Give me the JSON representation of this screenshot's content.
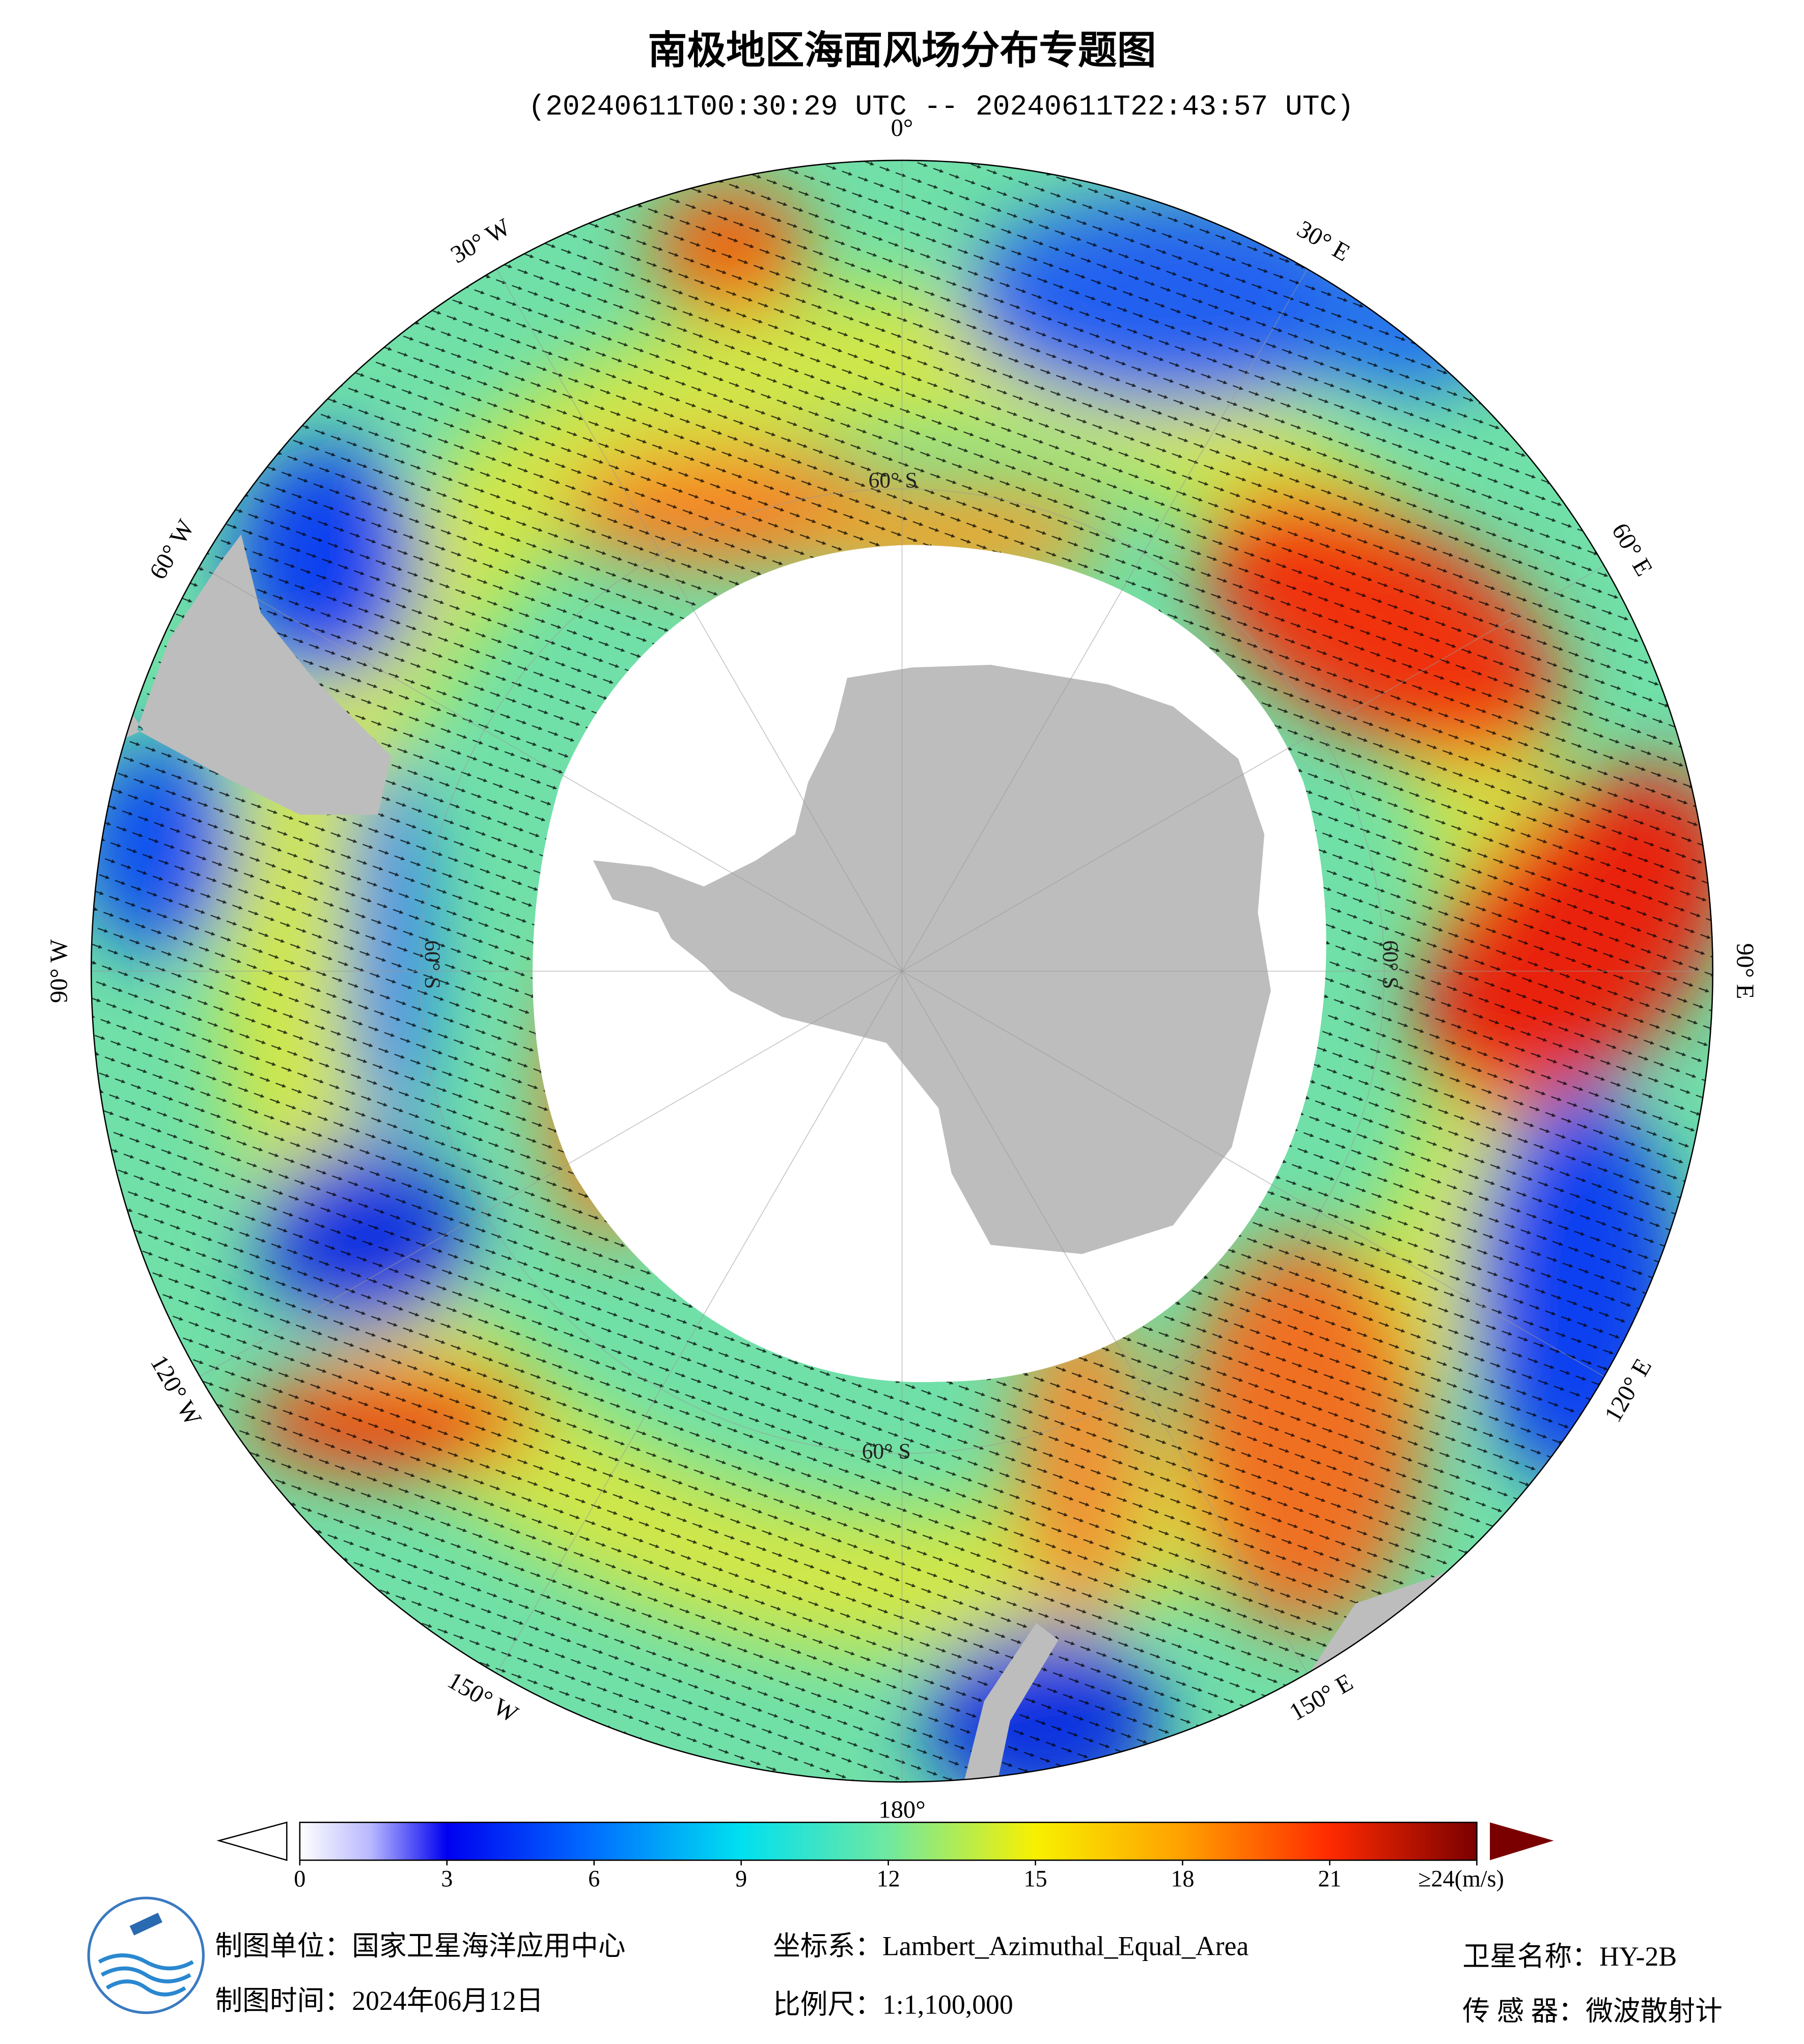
{
  "header": {
    "title": "南极地区海面风场分布专题图",
    "subtitle": "(20240611T00:30:29 UTC -- 20240611T22:43:57 UTC)"
  },
  "map": {
    "longitude_labels": [
      {
        "value": 0,
        "label": "0°"
      },
      {
        "value": 30,
        "label": "30° E"
      },
      {
        "value": 60,
        "label": "60° E"
      },
      {
        "value": 90,
        "label": "90° E"
      },
      {
        "value": 120,
        "label": "120° E"
      },
      {
        "value": 150,
        "label": "150° E"
      },
      {
        "value": 180,
        "label": "180°"
      },
      {
        "value": -150,
        "label": "150° W"
      },
      {
        "value": -120,
        "label": "120° W"
      },
      {
        "value": -90,
        "label": "90° W"
      },
      {
        "value": -60,
        "label": "60° W"
      },
      {
        "value": -30,
        "label": "30° W"
      }
    ],
    "latitude_labels": [
      "60° S",
      "60° S",
      "60° S",
      "60° S"
    ]
  },
  "colorbar": {
    "range": [
      0,
      24
    ],
    "ticks": [
      0,
      3,
      6,
      9,
      12,
      15,
      18,
      21,
      {
        "value": 24,
        "label": "≥24(m/s)"
      }
    ]
  },
  "footer": {
    "producer": "制图单位：国家卫星海洋应用中心",
    "date": "制图时间：2024年06月12日",
    "projection": "坐标系：Lambert_Azimuthal_Equal_Area",
    "scale": "比例尺：1:1,100,000",
    "satellite": "卫星名称：HY-2B",
    "sensor": "传 感 器：微波散射计"
  }
}
